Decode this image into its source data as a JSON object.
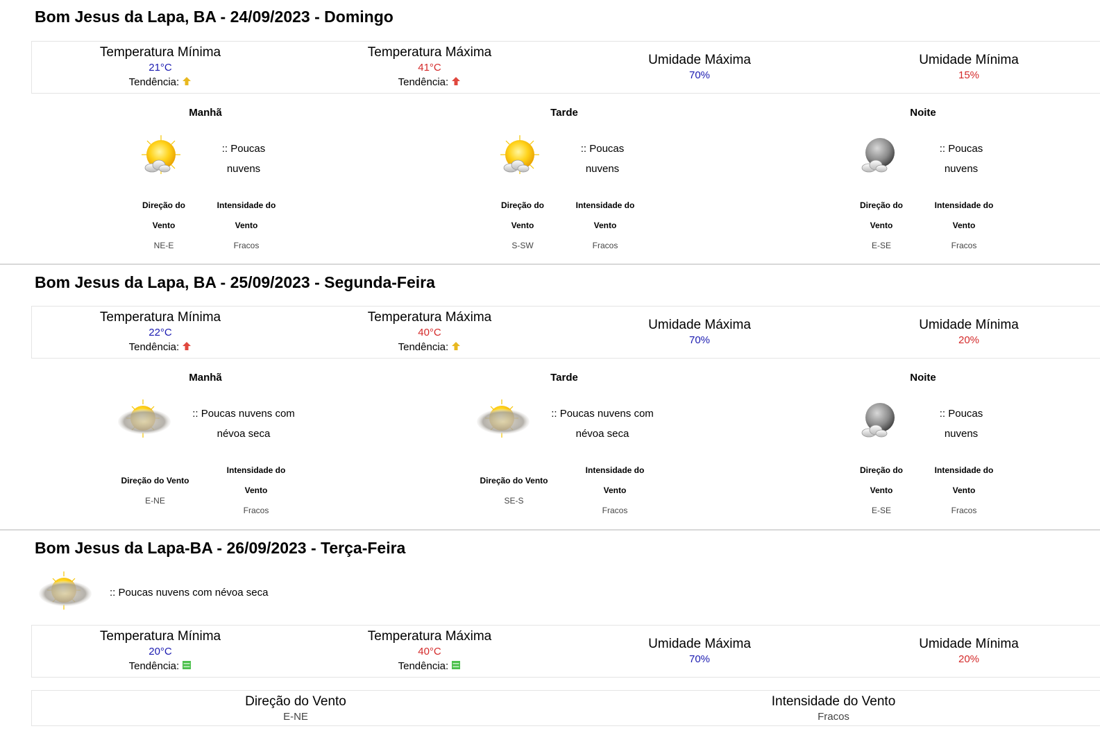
{
  "days": [
    {
      "title": "Bom Jesus da Lapa, BA - 24/09/2023 - Domingo",
      "temp_min_label": "Temperatura Mínima",
      "temp_min": "21°C",
      "temp_max_label": "Temperatura Máxima",
      "temp_max": "41°C",
      "trend_label": "Tendência:",
      "trend_min_icon": "trend-stable-up-icon",
      "trend_max_icon": "trend-up-icon",
      "hum_max_label": "Umidade Máxima",
      "hum_max": "70%",
      "hum_min_label": "Umidade Mínima",
      "hum_min": "15%",
      "periods": [
        {
          "name": "Manhã",
          "icon": "sun-cloud-icon",
          "cond1": ":: Poucas",
          "cond2": "nuvens",
          "dir_label1": "Direção do",
          "dir_label2": "Vento",
          "dir": "NE-E",
          "int_label1": "Intensidade do",
          "int_label2": "Vento",
          "int": "Fracos"
        },
        {
          "name": "Tarde",
          "icon": "sun-cloud-icon",
          "cond1": ":: Poucas",
          "cond2": "nuvens",
          "dir_label1": "Direção do",
          "dir_label2": "Vento",
          "dir": "S-SW",
          "int_label1": "Intensidade do",
          "int_label2": "Vento",
          "int": "Fracos"
        },
        {
          "name": "Noite",
          "icon": "moon-cloud-icon",
          "cond1": ":: Poucas",
          "cond2": "nuvens",
          "dir_label1": "Direção do",
          "dir_label2": "Vento",
          "dir": "E-SE",
          "int_label1": "Intensidade do",
          "int_label2": "Vento",
          "int": "Fracos"
        }
      ]
    },
    {
      "title": "Bom Jesus da Lapa, BA - 25/09/2023 - Segunda-Feira",
      "temp_min_label": "Temperatura Mínima",
      "temp_min": "22°C",
      "temp_max_label": "Temperatura Máxima",
      "temp_max": "40°C",
      "trend_label": "Tendência:",
      "trend_min_icon": "trend-up-icon",
      "trend_max_icon": "trend-stable-up-icon",
      "hum_max_label": "Umidade Máxima",
      "hum_max": "70%",
      "hum_min_label": "Umidade Mínima",
      "hum_min": "20%",
      "periods": [
        {
          "name": "Manhã",
          "icon": "sun-haze-icon",
          "cond1": ":: Poucas nuvens com",
          "cond2": "névoa seca",
          "dir_label": "Direção do Vento",
          "dir": "E-NE",
          "int_label1": "Intensidade do",
          "int_label2": "Vento",
          "int": "Fracos"
        },
        {
          "name": "Tarde",
          "icon": "sun-haze-icon",
          "cond1": ":: Poucas nuvens com",
          "cond2": "névoa seca",
          "dir_label": "Direção do Vento",
          "dir": "SE-S",
          "int_label1": "Intensidade do",
          "int_label2": "Vento",
          "int": "Fracos"
        },
        {
          "name": "Noite",
          "icon": "moon-cloud-icon",
          "cond1": ":: Poucas",
          "cond2": "nuvens",
          "dir_label1": "Direção do",
          "dir_label2": "Vento",
          "dir": "E-SE",
          "int_label1": "Intensidade do",
          "int_label2": "Vento",
          "int": "Fracos"
        }
      ]
    },
    {
      "title": "Bom Jesus da Lapa-BA - 26/09/2023 - Terça-Feira",
      "summary_icon": "sun-haze-icon",
      "summary": ":: Poucas nuvens com névoa seca",
      "temp_min_label": "Temperatura Mínima",
      "temp_min": "20°C",
      "temp_max_label": "Temperatura Máxima",
      "temp_max": "40°C",
      "trend_label": "Tendência:",
      "trend_min_icon": "trend-stable-icon",
      "trend_max_icon": "trend-stable-icon",
      "hum_max_label": "Umidade Máxima",
      "hum_max": "70%",
      "hum_min_label": "Umidade Mínima",
      "hum_min": "20%",
      "wind_dir_label": "Direção do Vento",
      "wind_dir": "E-NE",
      "wind_int_label": "Intensidade do Vento",
      "wind_int": "Fracos"
    }
  ],
  "colors": {
    "min": "#1a1ab0",
    "max": "#d42a2a",
    "trend_up": "#e0483e",
    "trend_stable_up": "#e8b820",
    "trend_stable": "#4cc04c"
  }
}
